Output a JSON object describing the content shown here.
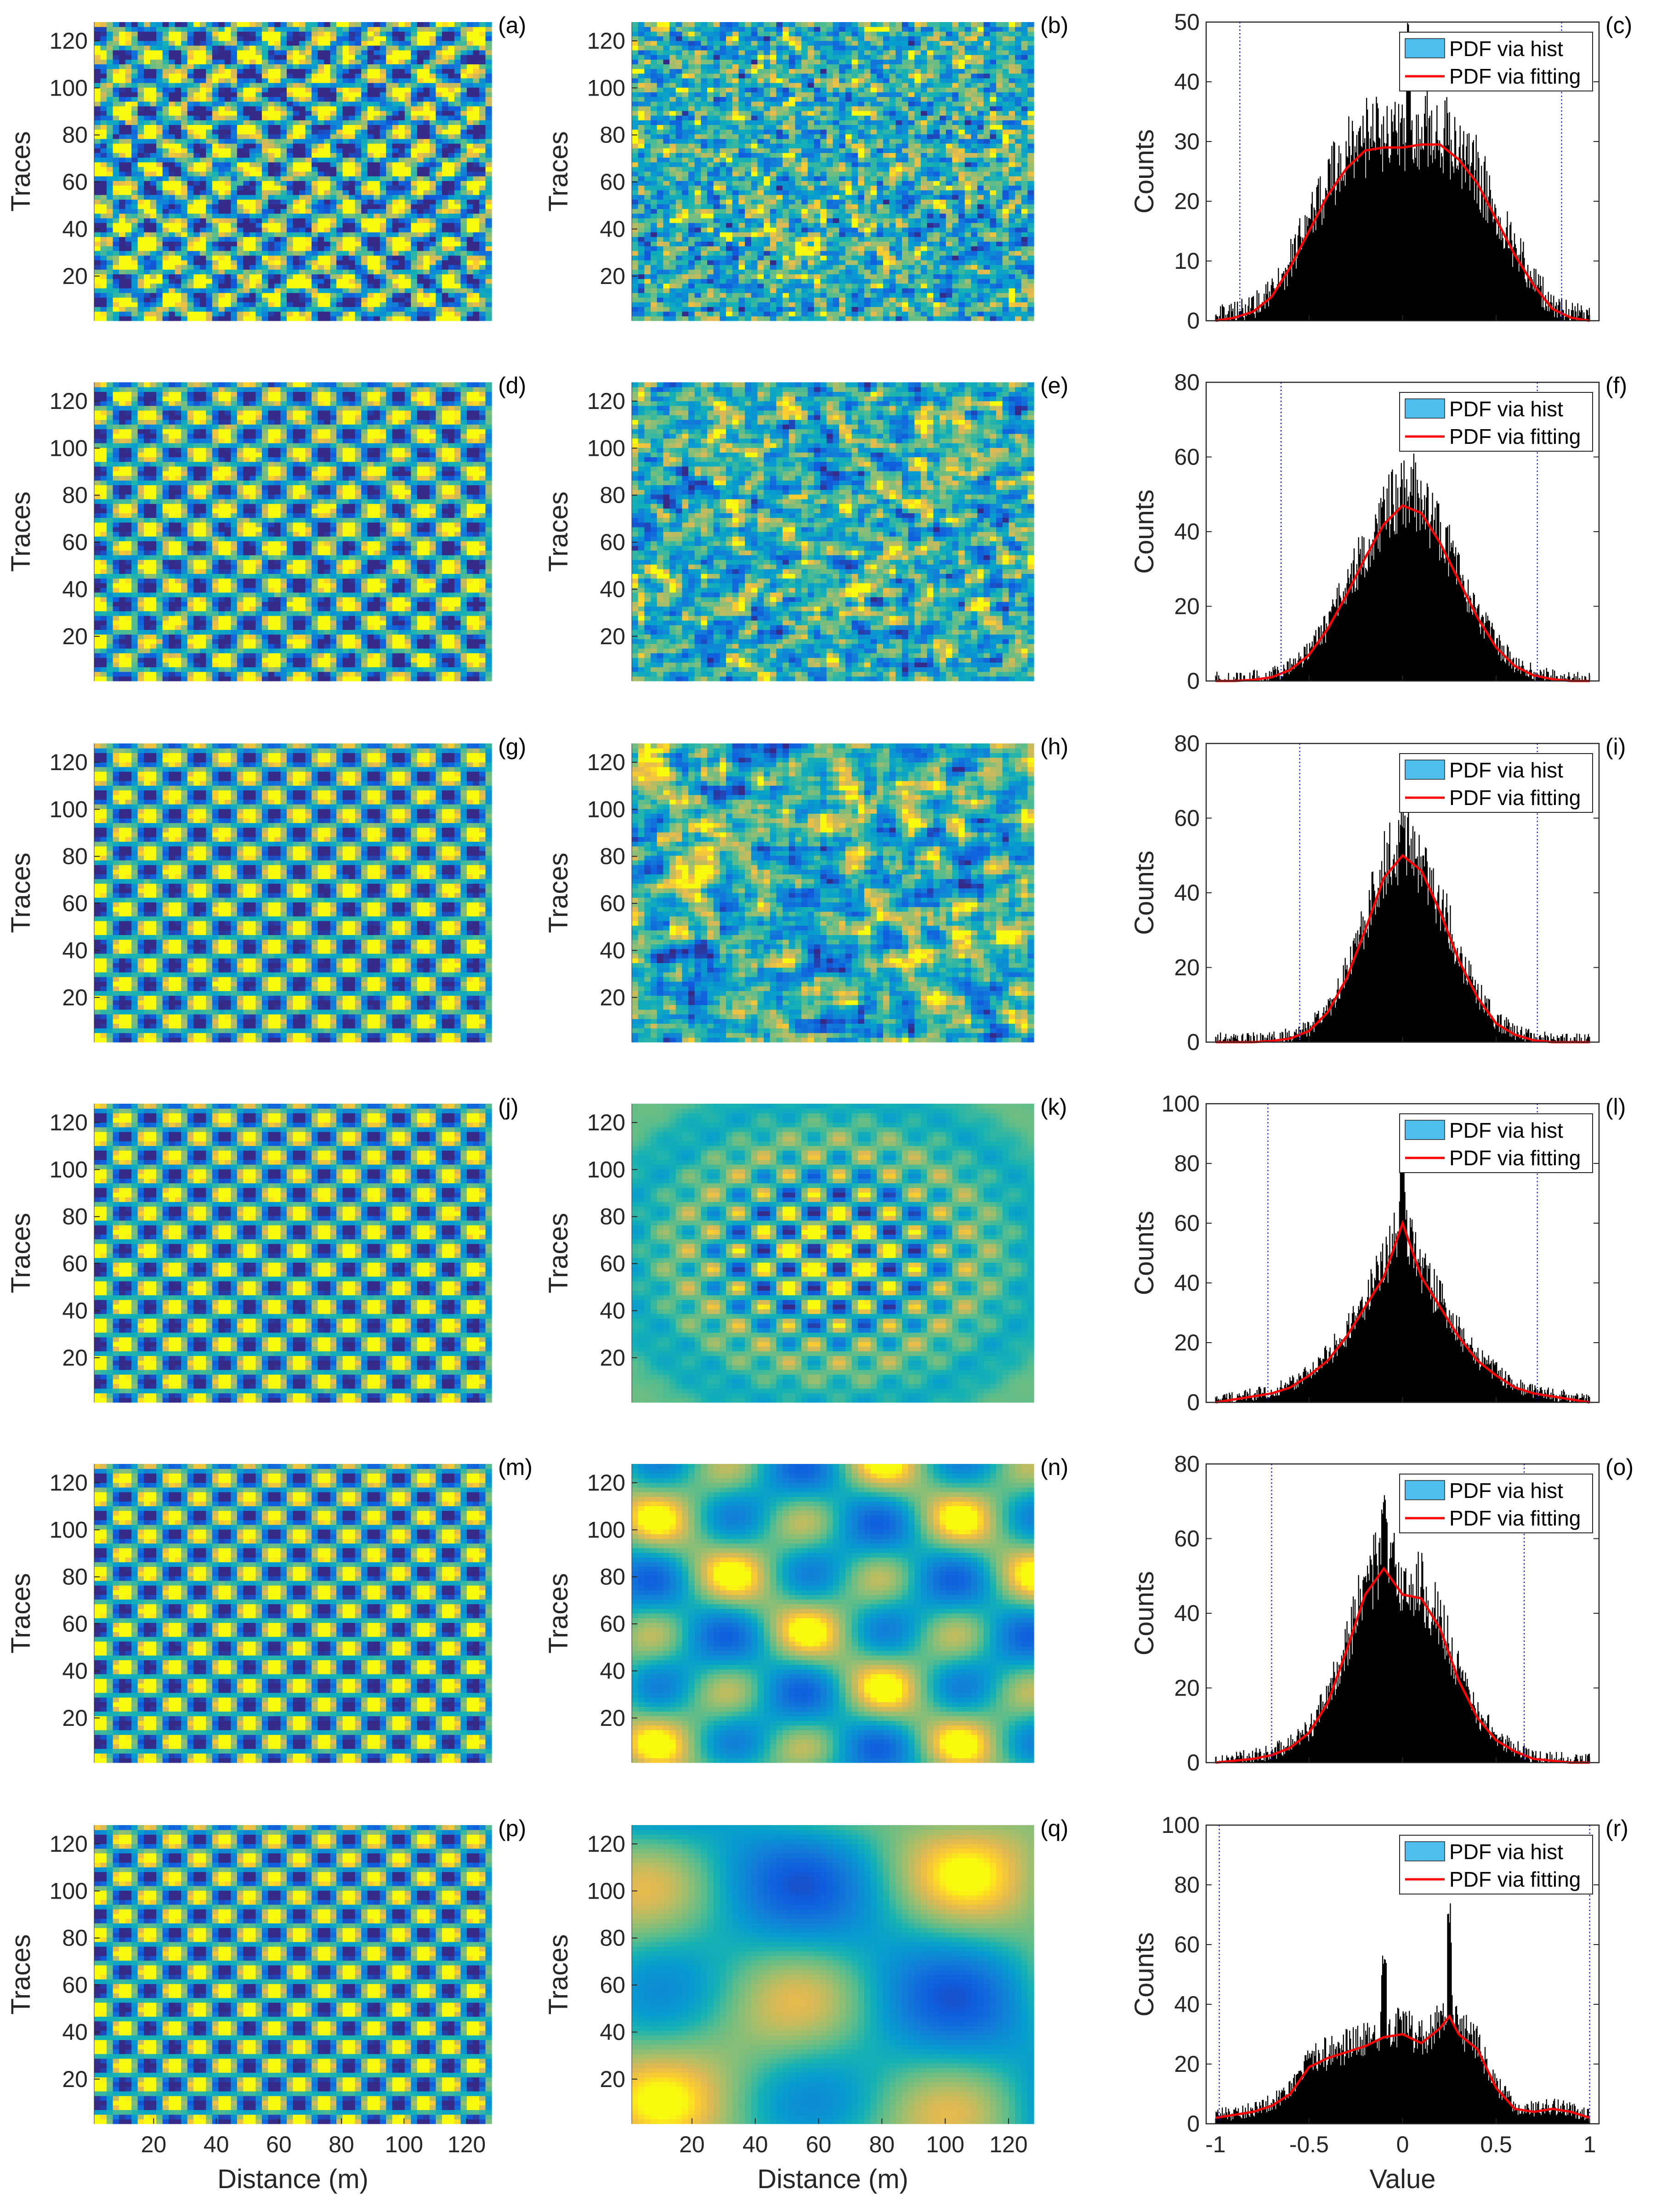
{
  "chart_data": [
    {
      "panel": "(a)",
      "type": "heatmap",
      "ylabel": "Traces",
      "xlabel": "",
      "yticks": [
        20,
        40,
        60,
        80,
        100,
        120
      ],
      "xticks": [],
      "xlim": [
        1,
        128
      ],
      "ylim": [
        1,
        128
      ],
      "pattern": {
        "kind": "checker",
        "period": 16,
        "noise": 0.45
      }
    },
    {
      "panel": "(b)",
      "type": "heatmap",
      "ylabel": "Traces",
      "xlabel": "",
      "yticks": [
        20,
        40,
        60,
        80,
        100,
        120
      ],
      "xticks": [],
      "xlim": [
        1,
        128
      ],
      "ylim": [
        1,
        128
      ],
      "pattern": {
        "kind": "noise",
        "scale": 1.5
      }
    },
    {
      "panel": "(c)",
      "type": "histogram",
      "ylabel": "Counts",
      "xlabel": "",
      "ylim": [
        0,
        50
      ],
      "yticks": [
        0,
        10,
        20,
        30,
        40,
        50
      ],
      "xlim": [
        -1.05,
        1.05
      ],
      "xticks": [],
      "legend": [
        "PDF via hist",
        "PDF via fitting"
      ],
      "legend_position": "top-right",
      "dotted_lines": [
        -0.87,
        0.85
      ],
      "fit": {
        "x": [
          -1,
          -0.9,
          -0.8,
          -0.7,
          -0.6,
          -0.5,
          -0.4,
          -0.3,
          -0.2,
          -0.1,
          0,
          0.1,
          0.2,
          0.3,
          0.4,
          0.5,
          0.6,
          0.7,
          0.8,
          0.9,
          1
        ],
        "y": [
          0,
          0.5,
          1.5,
          4,
          9,
          15,
          21,
          25.5,
          28.5,
          29,
          29,
          29.5,
          29.5,
          27,
          23,
          17,
          11,
          6,
          2,
          0.5,
          0
        ]
      },
      "peaks": [
        {
          "x": 0.03,
          "y": 50
        }
      ]
    },
    {
      "panel": "(d)",
      "type": "heatmap",
      "ylabel": "Traces",
      "xlabel": "",
      "yticks": [
        20,
        40,
        60,
        80,
        100,
        120
      ],
      "xticks": [],
      "xlim": [
        1,
        128
      ],
      "ylim": [
        1,
        128
      ],
      "pattern": {
        "kind": "checker",
        "period": 16,
        "noise": 0.2
      }
    },
    {
      "panel": "(e)",
      "type": "heatmap",
      "ylabel": "Traces",
      "xlabel": "",
      "yticks": [
        20,
        40,
        60,
        80,
        100,
        120
      ],
      "xticks": [],
      "xlim": [
        1,
        128
      ],
      "ylim": [
        1,
        128
      ],
      "pattern": {
        "kind": "noise",
        "scale": 3
      }
    },
    {
      "panel": "(f)",
      "type": "histogram",
      "ylabel": "Counts",
      "xlabel": "",
      "ylim": [
        0,
        80
      ],
      "yticks": [
        0,
        20,
        40,
        60,
        80
      ],
      "xlim": [
        -1.05,
        1.05
      ],
      "xticks": [],
      "legend": [
        "PDF via hist",
        "PDF via fitting"
      ],
      "legend_position": "top-right",
      "dotted_lines": [
        -0.65,
        0.72
      ],
      "fit": {
        "x": [
          -1,
          -0.9,
          -0.8,
          -0.7,
          -0.6,
          -0.5,
          -0.4,
          -0.3,
          -0.2,
          -0.1,
          0,
          0.1,
          0.2,
          0.3,
          0.4,
          0.5,
          0.6,
          0.7,
          0.8,
          0.9,
          1
        ],
        "y": [
          0,
          0,
          0.3,
          1,
          3,
          7,
          14,
          23,
          33,
          42,
          47,
          45,
          37,
          27,
          17,
          9,
          4,
          1.5,
          0.5,
          0,
          0
        ]
      },
      "peaks": [
        {
          "x": 0.05,
          "y": 61
        }
      ]
    },
    {
      "panel": "(g)",
      "type": "heatmap",
      "ylabel": "Traces",
      "xlabel": "",
      "yticks": [
        20,
        40,
        60,
        80,
        100,
        120
      ],
      "xticks": [],
      "xlim": [
        1,
        128
      ],
      "ylim": [
        1,
        128
      ],
      "pattern": {
        "kind": "checker",
        "period": 16,
        "noise": 0.08
      }
    },
    {
      "panel": "(h)",
      "type": "heatmap",
      "ylabel": "Traces",
      "xlabel": "",
      "yticks": [
        20,
        40,
        60,
        80,
        100,
        120
      ],
      "xticks": [],
      "xlim": [
        1,
        128
      ],
      "ylim": [
        1,
        128
      ],
      "pattern": {
        "kind": "noise",
        "scale": 6
      }
    },
    {
      "panel": "(i)",
      "type": "histogram",
      "ylabel": "Counts",
      "xlabel": "",
      "ylim": [
        0,
        80
      ],
      "yticks": [
        0,
        20,
        40,
        60,
        80
      ],
      "xlim": [
        -1.05,
        1.05
      ],
      "xticks": [],
      "legend": [
        "PDF via hist",
        "PDF via fitting"
      ],
      "legend_position": "top-right",
      "dotted_lines": [
        -0.55,
        0.72
      ],
      "fit": {
        "x": [
          -1,
          -0.9,
          -0.8,
          -0.7,
          -0.6,
          -0.5,
          -0.4,
          -0.3,
          -0.2,
          -0.1,
          0,
          0.1,
          0.2,
          0.3,
          0.4,
          0.5,
          0.6,
          0.7,
          0.8,
          0.9,
          1
        ],
        "y": [
          0,
          0,
          0,
          0.3,
          1,
          3,
          8,
          17,
          30,
          44,
          50,
          46,
          35,
          22,
          12,
          5,
          2,
          0.5,
          0,
          0,
          0
        ]
      },
      "peaks": [
        {
          "x": 0,
          "y": 70
        }
      ]
    },
    {
      "panel": "(j)",
      "type": "heatmap",
      "ylabel": "Traces",
      "xlabel": "",
      "yticks": [
        20,
        40,
        60,
        80,
        100,
        120
      ],
      "xticks": [],
      "xlim": [
        1,
        128
      ],
      "ylim": [
        1,
        128
      ],
      "pattern": {
        "kind": "checker",
        "period": 16,
        "noise": 0.05
      }
    },
    {
      "panel": "(k)",
      "type": "heatmap",
      "ylabel": "Traces",
      "xlabel": "",
      "yticks": [
        20,
        40,
        60,
        80,
        100,
        120
      ],
      "xticks": [],
      "xlim": [
        1,
        128
      ],
      "ylim": [
        1,
        128
      ],
      "pattern": {
        "kind": "focused",
        "period": 16
      }
    },
    {
      "panel": "(l)",
      "type": "histogram",
      "ylabel": "Counts",
      "xlabel": "",
      "ylim": [
        0,
        100
      ],
      "yticks": [
        0,
        20,
        40,
        60,
        80,
        100
      ],
      "xlim": [
        -1.05,
        1.05
      ],
      "xticks": [],
      "legend": [
        "PDF via hist",
        "PDF via fitting"
      ],
      "legend_position": "top-right",
      "dotted_lines": [
        -0.72,
        0.72
      ],
      "fit": {
        "x": [
          -1,
          -0.9,
          -0.8,
          -0.7,
          -0.6,
          -0.5,
          -0.4,
          -0.3,
          -0.2,
          -0.1,
          0,
          0.1,
          0.2,
          0.3,
          0.4,
          0.5,
          0.6,
          0.7,
          0.8,
          0.9,
          1
        ],
        "y": [
          0,
          1,
          2,
          3,
          5,
          9,
          14,
          22,
          32,
          42,
          60,
          42,
          32,
          22,
          14,
          9,
          5,
          3,
          2,
          1,
          0
        ]
      },
      "peaks": [
        {
          "x": 0,
          "y": 88
        }
      ]
    },
    {
      "panel": "(m)",
      "type": "heatmap",
      "ylabel": "Traces",
      "xlabel": "",
      "yticks": [
        20,
        40,
        60,
        80,
        100,
        120
      ],
      "xticks": [],
      "xlim": [
        1,
        128
      ],
      "ylim": [
        1,
        128
      ],
      "pattern": {
        "kind": "checker",
        "period": 16,
        "noise": 0.03
      }
    },
    {
      "panel": "(n)",
      "type": "heatmap",
      "ylabel": "Traces",
      "xlabel": "",
      "yticks": [
        20,
        40,
        60,
        80,
        100,
        120
      ],
      "xticks": [],
      "xlim": [
        1,
        128
      ],
      "ylim": [
        1,
        128
      ],
      "pattern": {
        "kind": "smooth",
        "period": 48
      }
    },
    {
      "panel": "(o)",
      "type": "histogram",
      "ylabel": "Counts",
      "xlabel": "",
      "ylim": [
        0,
        80
      ],
      "yticks": [
        0,
        20,
        40,
        60,
        80
      ],
      "xlim": [
        -1.05,
        1.05
      ],
      "xticks": [],
      "legend": [
        "PDF via hist",
        "PDF via fitting"
      ],
      "legend_position": "top-right",
      "dotted_lines": [
        -0.7,
        0.65
      ],
      "fit": {
        "x": [
          -1,
          -0.9,
          -0.8,
          -0.7,
          -0.6,
          -0.5,
          -0.4,
          -0.3,
          -0.2,
          -0.1,
          0,
          0.1,
          0.2,
          0.3,
          0.4,
          0.5,
          0.6,
          0.7,
          0.8,
          0.9,
          1
        ],
        "y": [
          0,
          0.5,
          1,
          2,
          4,
          8,
          16,
          30,
          45,
          52,
          45,
          44,
          36,
          22,
          12,
          6,
          3,
          1,
          0.5,
          0,
          0
        ]
      },
      "peaks": [
        {
          "x": -0.1,
          "y": 73
        }
      ]
    },
    {
      "panel": "(p)",
      "type": "heatmap",
      "ylabel": "Traces",
      "xlabel": "Distance (m)",
      "yticks": [
        20,
        40,
        60,
        80,
        100,
        120
      ],
      "xticks": [
        20,
        40,
        60,
        80,
        100,
        120
      ],
      "xlim": [
        1,
        128
      ],
      "ylim": [
        1,
        128
      ],
      "pattern": {
        "kind": "checker",
        "period": 16,
        "noise": 0.02
      }
    },
    {
      "panel": "(q)",
      "type": "heatmap",
      "ylabel": "Traces",
      "xlabel": "Distance (m)",
      "yticks": [
        20,
        40,
        60,
        80,
        100,
        120
      ],
      "xticks": [
        20,
        40,
        60,
        80,
        100,
        120
      ],
      "xlim": [
        1,
        128
      ],
      "ylim": [
        1,
        128
      ],
      "pattern": {
        "kind": "smooth",
        "period": 96
      }
    },
    {
      "panel": "(r)",
      "type": "histogram",
      "ylabel": "Counts",
      "xlabel": "Value",
      "ylim": [
        0,
        100
      ],
      "yticks": [
        0,
        20,
        40,
        60,
        80,
        100
      ],
      "xlim": [
        -1.05,
        1.05
      ],
      "xticks": [
        -1,
        -0.5,
        0,
        0.5,
        1
      ],
      "legend": [
        "PDF via hist",
        "PDF via fitting"
      ],
      "legend_position": "top-right",
      "dotted_lines": [
        -0.98,
        1.0
      ],
      "fit": {
        "x": [
          -1,
          -0.9,
          -0.8,
          -0.7,
          -0.6,
          -0.5,
          -0.4,
          -0.3,
          -0.2,
          -0.1,
          0,
          0.1,
          0.2,
          0.25,
          0.3,
          0.4,
          0.5,
          0.6,
          0.7,
          0.8,
          0.9,
          1
        ],
        "y": [
          2,
          3,
          4,
          6,
          10,
          19,
          22,
          24,
          26,
          29,
          30,
          27,
          32,
          36,
          30,
          25,
          12,
          5,
          4,
          5,
          4,
          2
        ]
      },
      "peaks": [
        {
          "x": 0.25,
          "y": 75
        },
        {
          "x": -0.1,
          "y": 58
        }
      ]
    }
  ],
  "colors": {
    "hist_bar": "#000000",
    "fit_line": "#ff0000",
    "legend_hist_patch": "#4dbeee",
    "dotted": "#0000ff"
  }
}
